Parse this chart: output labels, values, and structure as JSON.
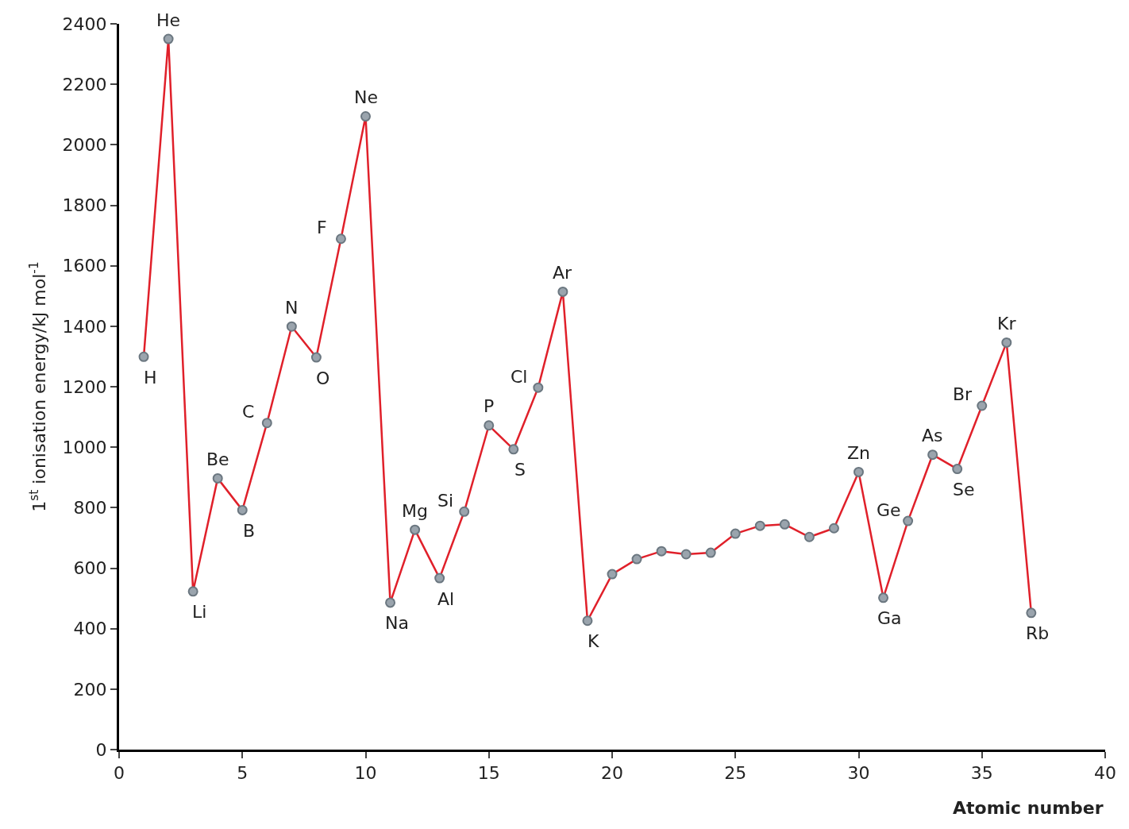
{
  "chart_data": {
    "type": "line",
    "xlabel": "Atomic number",
    "ylabel": "1$^{st}$ ionisation energy/kJ mol$^{-1}$",
    "x": [
      1,
      2,
      3,
      4,
      5,
      6,
      7,
      8,
      9,
      10,
      11,
      12,
      13,
      14,
      15,
      16,
      17,
      18,
      19,
      20,
      21,
      22,
      23,
      24,
      25,
      26,
      27,
      28,
      29,
      30,
      31,
      32,
      33,
      34,
      35,
      36,
      37
    ],
    "series": [
      {
        "color": "#e0202a",
        "values": [
          1299,
          2350,
          523,
          897,
          792,
          1080,
          1399,
          1297,
          1689,
          2094,
          486,
          727,
          567,
          787,
          1072,
          993,
          1197,
          1514,
          426,
          580,
          630,
          656,
          646,
          651,
          714,
          740,
          745,
          703,
          732,
          918,
          502,
          756,
          975,
          928,
          1137,
          1346,
          452
        ]
      }
    ],
    "marker": "circle",
    "legend": false,
    "xlim": [
      0,
      40
    ],
    "xticks": [
      0,
      5,
      10,
      15,
      20,
      25,
      30,
      35,
      40
    ],
    "ylim": [
      0,
      2400
    ],
    "yticks": [
      0,
      200,
      400,
      600,
      800,
      1000,
      1200,
      1400,
      1600,
      1800,
      2000,
      2200,
      2400
    ],
    "annotations": [
      {
        "text": "H",
        "x": 1,
        "y": 1299
      },
      {
        "text": "He",
        "x": 2,
        "y": 2350
      },
      {
        "text": "Li",
        "x": 3,
        "y": 523
      },
      {
        "text": "Be",
        "x": 4,
        "y": 897
      },
      {
        "text": "B",
        "x": 5,
        "y": 792
      },
      {
        "text": "C",
        "x": 6,
        "y": 1080
      },
      {
        "text": "N",
        "x": 7,
        "y": 1399
      },
      {
        "text": "O",
        "x": 8,
        "y": 1297
      },
      {
        "text": "F",
        "x": 9,
        "y": 1689
      },
      {
        "text": "Ne",
        "x": 10,
        "y": 2094
      },
      {
        "text": "Na",
        "x": 11,
        "y": 486
      },
      {
        "text": "Mg",
        "x": 12,
        "y": 727
      },
      {
        "text": "Al",
        "x": 13,
        "y": 567
      },
      {
        "text": "Si",
        "x": 14,
        "y": 787
      },
      {
        "text": "P",
        "x": 15,
        "y": 1072
      },
      {
        "text": "S",
        "x": 16,
        "y": 993
      },
      {
        "text": "Cl",
        "x": 17,
        "y": 1197
      },
      {
        "text": "Ar",
        "x": 18,
        "y": 1514
      },
      {
        "text": "K",
        "x": 19,
        "y": 426
      },
      {
        "text": "Zn",
        "x": 30,
        "y": 918
      },
      {
        "text": "Ga",
        "x": 31,
        "y": 502
      },
      {
        "text": "Ge",
        "x": 32,
        "y": 756
      },
      {
        "text": "As",
        "x": 33,
        "y": 975
      },
      {
        "text": "Se",
        "x": 34,
        "y": 928
      },
      {
        "text": "Br",
        "x": 35,
        "y": 1137
      },
      {
        "text": "Kr",
        "x": 36,
        "y": 1346
      },
      {
        "text": "Rb",
        "x": 37,
        "y": 452
      }
    ]
  }
}
